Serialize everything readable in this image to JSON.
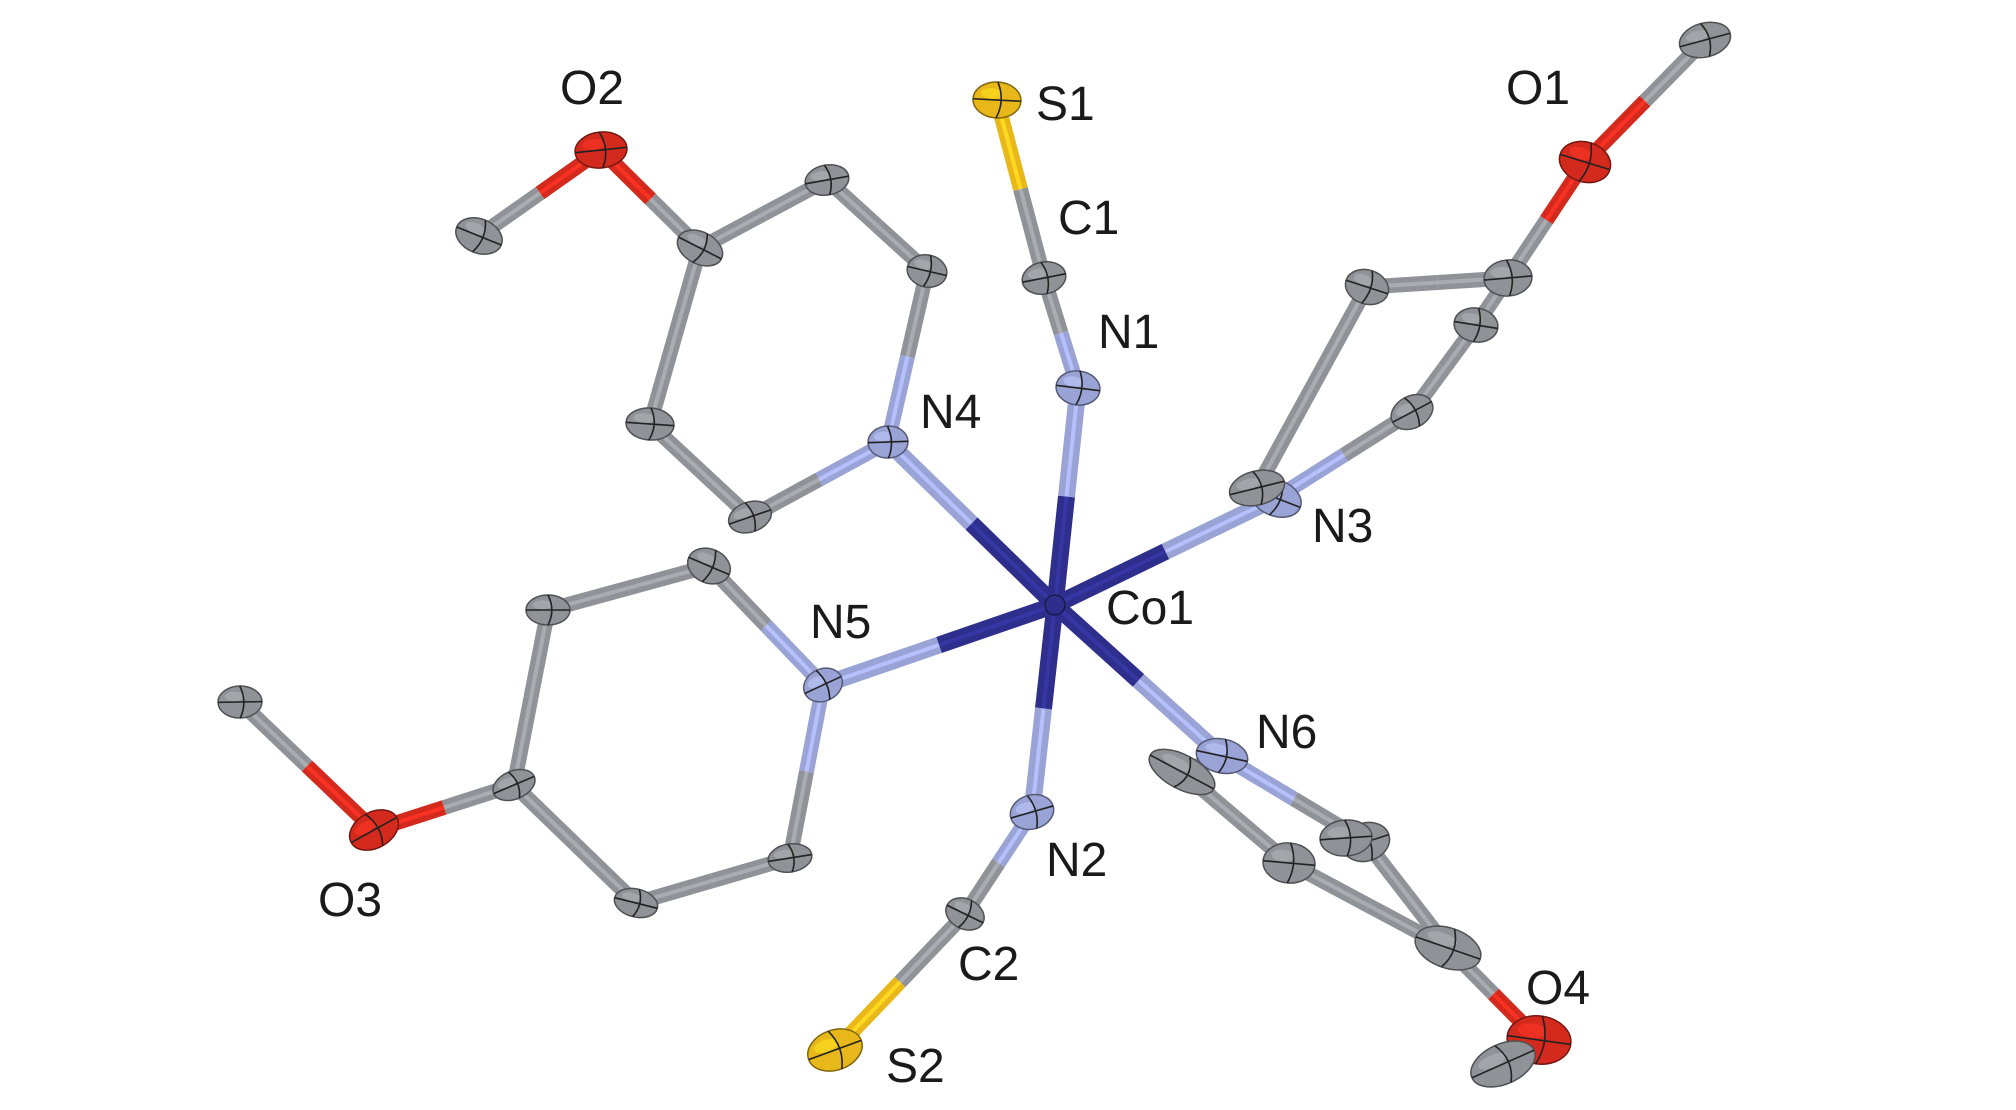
{
  "colors": {
    "carbon": "#8f9296",
    "nitrogen": "#9aa3d6",
    "cobalt": "#2e2f8c",
    "oxygen": "#d42a1e",
    "sulfur": "#e8b81a",
    "background": "#ffffff",
    "label": "#1a1a1a"
  },
  "atoms": [
    {
      "id": "Co1",
      "element": "Co",
      "label": "Co1"
    },
    {
      "id": "N1",
      "element": "N",
      "label": "N1"
    },
    {
      "id": "N2",
      "element": "N",
      "label": "N2"
    },
    {
      "id": "N3",
      "element": "N",
      "label": "N3"
    },
    {
      "id": "N4",
      "element": "N",
      "label": "N4"
    },
    {
      "id": "N5",
      "element": "N",
      "label": "N5"
    },
    {
      "id": "N6",
      "element": "N",
      "label": "N6"
    },
    {
      "id": "C1",
      "element": "C",
      "label": "C1"
    },
    {
      "id": "C2",
      "element": "C",
      "label": "C2"
    },
    {
      "id": "S1",
      "element": "S",
      "label": "S1"
    },
    {
      "id": "S2",
      "element": "S",
      "label": "S2"
    },
    {
      "id": "O1",
      "element": "O",
      "label": "O1"
    },
    {
      "id": "O2",
      "element": "O",
      "label": "O2"
    },
    {
      "id": "O3",
      "element": "O",
      "label": "O3"
    },
    {
      "id": "O4",
      "element": "O",
      "label": "O4"
    }
  ]
}
